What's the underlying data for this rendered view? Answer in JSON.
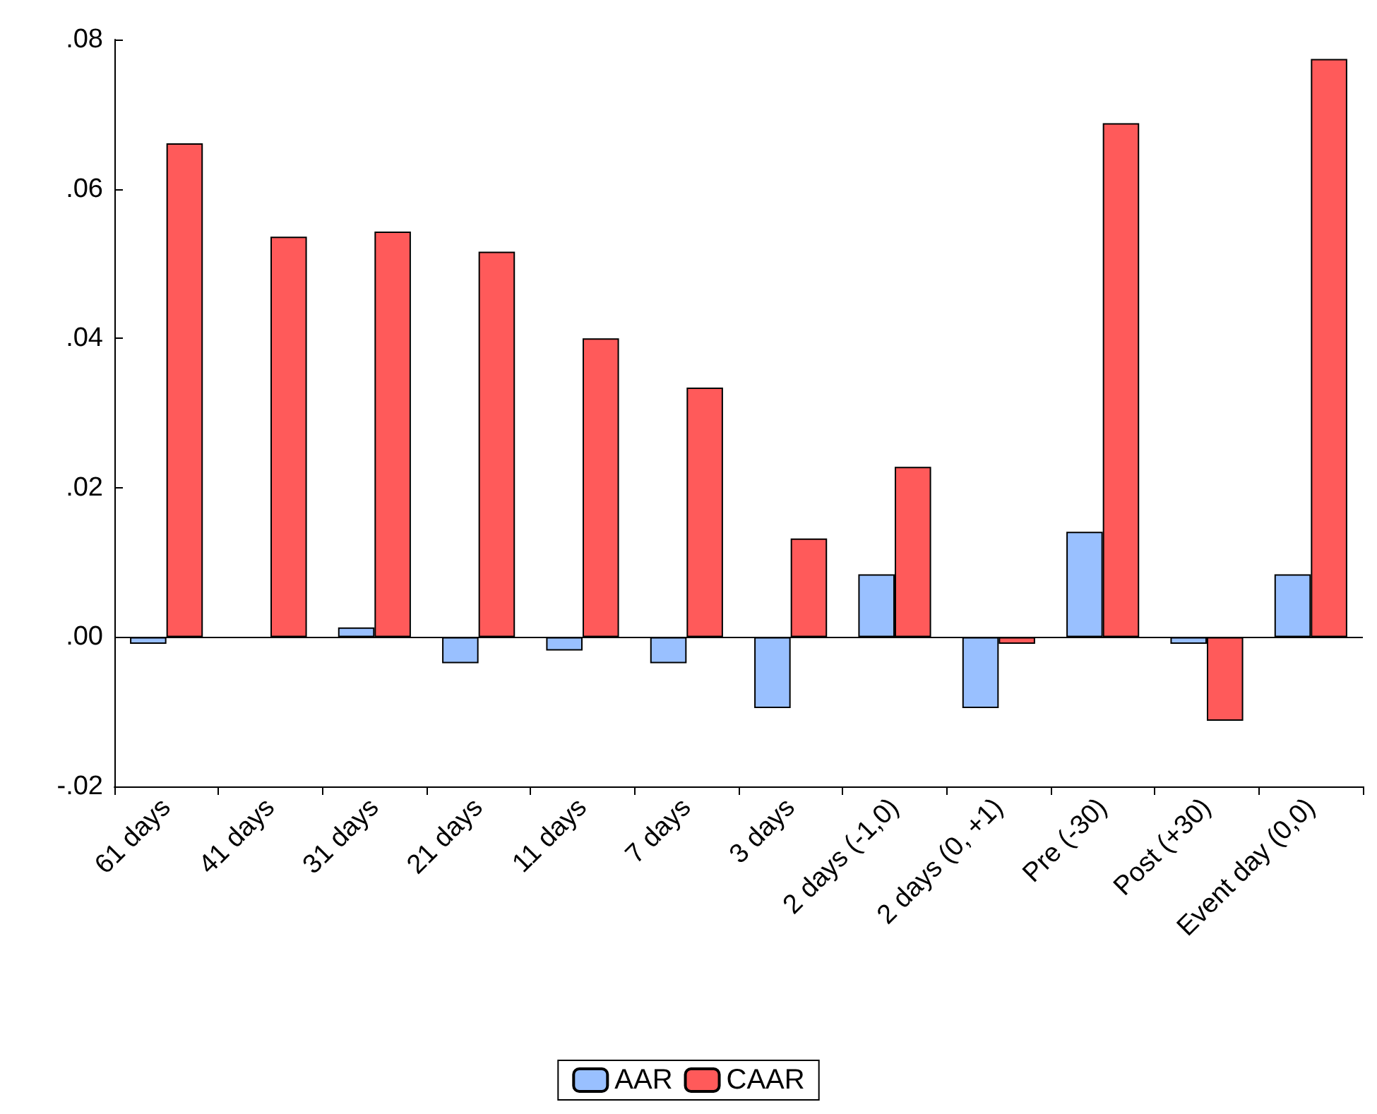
{
  "chart_data": {
    "type": "bar",
    "categories": [
      "61 days",
      "41 days",
      "31 days",
      "21 days",
      "11 days",
      "7 days",
      "3 days",
      "2 days (-1,0)",
      "2 days (0, +1)",
      "Pre (-30)",
      "Post (+30)",
      "Event day (0,0)"
    ],
    "series": [
      {
        "name": "AAR",
        "color": "#99c0ff",
        "values": [
          -0.0009,
          null,
          0.0013,
          -0.0035,
          -0.0018,
          -0.0035,
          -0.0095,
          0.0084,
          -0.0095,
          0.0141,
          -0.0009,
          0.0084
        ]
      },
      {
        "name": "CAAR",
        "color": "#ff5a5a",
        "values": [
          0.0661,
          0.0536,
          0.0543,
          0.0516,
          0.04,
          0.0334,
          0.0132,
          0.0228,
          -0.0009,
          0.0688,
          -0.0112,
          0.0774
        ]
      }
    ],
    "ylim": [
      -0.02,
      0.08
    ],
    "yticks": [
      {
        "value": -0.02,
        "label": "-.02"
      },
      {
        "value": 0,
        "label": ".00"
      },
      {
        "value": 0.02,
        "label": ".02"
      },
      {
        "value": 0.04,
        "label": ".04"
      },
      {
        "value": 0.06,
        "label": ".06"
      },
      {
        "value": 0.08,
        "label": ".08"
      }
    ],
    "ref_lines": [
      {
        "axis": "y",
        "value": 0,
        "label": null
      }
    ],
    "grid": false,
    "legend": "bottom"
  }
}
